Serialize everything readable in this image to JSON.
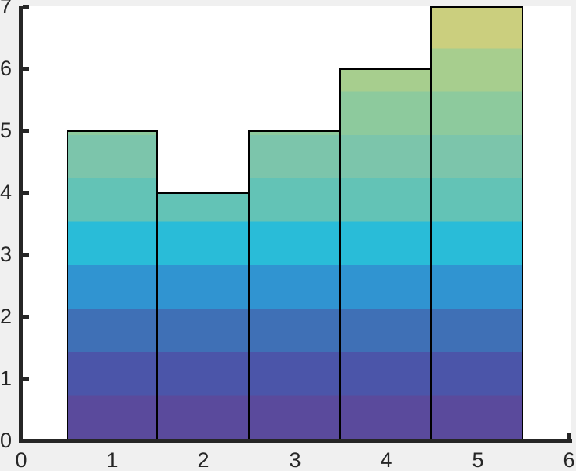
{
  "figure": {
    "background_color": "#f0f0f0",
    "plot_background_color": "#ffffff",
    "axis_color": "#262626",
    "tick_label_color": "#262626",
    "bar_edge_color": "#000000"
  },
  "chart_data": {
    "type": "bar",
    "x": [
      1,
      2,
      3,
      4,
      5
    ],
    "values": [
      5,
      4,
      5,
      6,
      7
    ],
    "bar_width": 1,
    "title": "",
    "xlabel": "",
    "ylabel": "",
    "xlim": [
      0,
      6
    ],
    "ylim": [
      0,
      7
    ],
    "grid": false,
    "legend": null,
    "x_ticks": [
      0,
      1,
      2,
      3,
      4,
      5,
      6
    ],
    "y_ticks": [
      0,
      1,
      2,
      3,
      4,
      5,
      6,
      7
    ],
    "x_tick_labels": [
      "0",
      "1",
      "2",
      "3",
      "4",
      "5",
      "6"
    ],
    "y_tick_labels": [
      "0",
      "1",
      "2",
      "3",
      "4",
      "5",
      "6",
      "7"
    ],
    "gradient_bands": {
      "band_height_units": 0.7,
      "colors_bottom_to_top": [
        "#5a4a9c",
        "#4b55a9",
        "#3f70b6",
        "#3094d1",
        "#29bcd8",
        "#63c3b6",
        "#7cc5ab",
        "#8dca9d",
        "#a7ce8e",
        "#cbcf7e"
      ]
    }
  }
}
